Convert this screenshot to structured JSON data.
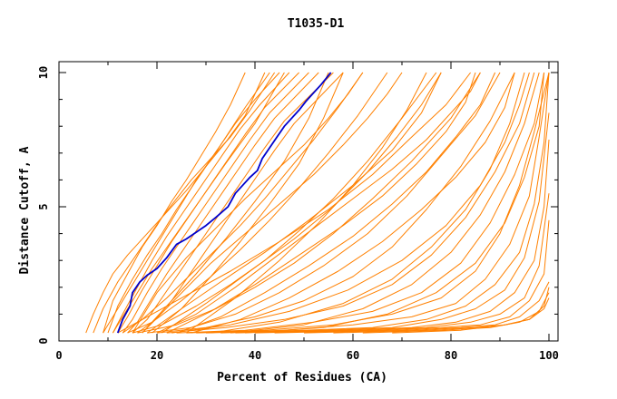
{
  "chart_data": {
    "type": "line",
    "title": "T1035-D1",
    "xlabel": "Percent of Residues (CA)",
    "ylabel": "Distance Cutoff, A",
    "xlim": [
      0,
      100
    ],
    "ylim": [
      0,
      10
    ],
    "xticks": [
      "0",
      "20",
      "40",
      "60",
      "80",
      "100"
    ],
    "yticks": [
      "0",
      "5",
      "10"
    ],
    "grid": false,
    "colors": {
      "others": "#ff8000",
      "highlight": "#0000cc",
      "axis": "#000000"
    },
    "highlight_series": {
      "x": [
        12,
        13,
        14.5,
        15,
        16.5,
        18,
        20,
        22,
        24,
        26,
        28,
        30,
        32,
        34.5,
        36,
        37.5,
        39,
        40.5,
        41.5,
        43,
        44.5,
        46,
        47.5,
        49,
        50.5,
        52,
        53.5,
        55.5
      ],
      "y": [
        0.3,
        0.8,
        1.3,
        1.8,
        2.2,
        2.45,
        2.7,
        3.1,
        3.6,
        3.8,
        4.05,
        4.3,
        4.6,
        5.0,
        5.5,
        5.8,
        6.1,
        6.35,
        6.8,
        7.2,
        7.6,
        8.0,
        8.3,
        8.6,
        8.95,
        9.25,
        9.55,
        10.0
      ]
    },
    "other_series": [
      {
        "x": [
          5.5,
          7,
          9,
          11,
          14,
          18,
          22,
          26,
          30,
          34,
          38,
          42
        ],
        "y": [
          0.3,
          1.0,
          1.8,
          2.5,
          3.2,
          4.0,
          4.8,
          5.6,
          6.5,
          7.4,
          8.4,
          10.0
        ]
      },
      {
        "x": [
          7,
          9,
          12,
          15,
          18,
          21,
          24,
          27,
          31,
          35,
          39,
          44
        ],
        "y": [
          0.3,
          1.2,
          2.2,
          3.0,
          3.8,
          4.6,
          5.3,
          6.0,
          6.8,
          7.6,
          8.6,
          10.0
        ]
      },
      {
        "x": [
          9,
          11,
          14,
          17,
          20,
          23,
          26,
          29,
          32,
          35,
          38
        ],
        "y": [
          0.3,
          1.5,
          2.5,
          3.5,
          4.3,
          5.2,
          6.0,
          6.9,
          7.8,
          8.8,
          10.0
        ]
      },
      {
        "x": [
          10,
          12,
          15,
          18,
          21,
          24,
          27,
          30,
          33,
          36,
          40,
          45
        ],
        "y": [
          0.3,
          1.3,
          2.3,
          3.2,
          4.0,
          4.9,
          5.7,
          6.5,
          7.3,
          8.1,
          9.0,
          10.0
        ]
      },
      {
        "x": [
          11,
          13,
          16,
          19,
          22,
          25,
          28,
          31,
          34,
          37,
          41,
          47
        ],
        "y": [
          0.3,
          1.0,
          2.0,
          3.0,
          3.9,
          4.7,
          5.5,
          6.3,
          7.1,
          7.9,
          8.8,
          10.0
        ]
      },
      {
        "x": [
          12,
          14,
          17,
          20,
          23,
          26,
          29,
          32,
          35,
          38,
          42,
          49
        ],
        "y": [
          0.3,
          0.9,
          1.9,
          2.8,
          3.7,
          4.5,
          5.3,
          6.1,
          6.9,
          7.7,
          8.7,
          10.0
        ]
      },
      {
        "x": [
          13,
          15,
          18,
          21,
          24,
          27,
          30,
          33,
          36,
          39,
          43,
          51
        ],
        "y": [
          0.3,
          0.8,
          1.8,
          2.7,
          3.5,
          4.3,
          5.1,
          5.9,
          6.7,
          7.5,
          8.5,
          10.0
        ]
      },
      {
        "x": [
          14,
          16,
          19,
          22,
          25,
          28,
          31,
          34,
          37,
          40,
          44,
          53
        ],
        "y": [
          0.3,
          0.7,
          1.6,
          2.5,
          3.3,
          4.1,
          4.9,
          5.7,
          6.5,
          7.3,
          8.3,
          10.0
        ]
      },
      {
        "x": [
          15,
          18,
          21,
          24,
          27,
          30,
          33,
          36,
          39,
          42,
          46,
          56
        ],
        "y": [
          0.3,
          0.8,
          1.6,
          2.4,
          3.2,
          4.0,
          4.8,
          5.6,
          6.4,
          7.2,
          8.2,
          10.0
        ]
      },
      {
        "x": [
          16,
          19,
          23,
          26,
          29,
          32,
          35,
          38,
          41,
          44,
          48,
          58
        ],
        "y": [
          0.3,
          0.7,
          1.5,
          2.3,
          3.1,
          3.9,
          4.7,
          5.5,
          6.3,
          7.1,
          8.1,
          10.0
        ]
      },
      {
        "x": [
          13,
          17,
          22,
          27,
          32,
          37,
          42,
          47,
          52,
          57,
          62
        ],
        "y": [
          0.3,
          0.8,
          1.6,
          2.5,
          3.4,
          4.3,
          5.3,
          6.4,
          7.5,
          8.7,
          10.0
        ]
      },
      {
        "x": [
          14,
          19,
          25,
          31,
          37,
          43,
          49,
          55,
          61,
          67
        ],
        "y": [
          0.3,
          0.7,
          1.5,
          2.4,
          3.4,
          4.5,
          5.7,
          7.0,
          8.4,
          10.0
        ]
      },
      {
        "x": [
          15,
          21,
          28,
          35,
          42,
          49,
          56,
          63,
          70,
          77
        ],
        "y": [
          0.3,
          0.6,
          1.3,
          2.1,
          3.0,
          4.1,
          5.3,
          6.7,
          8.3,
          10.0
        ]
      },
      {
        "x": [
          16,
          24,
          32,
          40,
          48,
          56,
          64,
          72,
          80,
          86
        ],
        "y": [
          0.3,
          0.6,
          1.2,
          2.0,
          2.9,
          4.0,
          5.3,
          6.7,
          8.3,
          10.0
        ]
      },
      {
        "x": [
          18,
          27,
          36,
          45,
          54,
          63,
          71,
          78,
          85,
          90
        ],
        "y": [
          0.3,
          0.5,
          1.0,
          1.8,
          2.8,
          4.0,
          5.4,
          6.9,
          8.4,
          10.0
        ]
      },
      {
        "x": [
          20,
          30,
          40,
          50,
          60,
          68,
          75,
          82,
          88,
          93
        ],
        "y": [
          0.3,
          0.5,
          0.9,
          1.5,
          2.4,
          3.5,
          4.9,
          6.5,
          8.2,
          10.0
        ]
      },
      {
        "x": [
          22,
          34,
          46,
          58,
          68,
          76,
          83,
          89,
          94,
          97
        ],
        "y": [
          0.3,
          0.5,
          0.8,
          1.3,
          2.1,
          3.2,
          4.6,
          6.3,
          8.1,
          10.0
        ]
      },
      {
        "x": [
          24,
          38,
          52,
          64,
          74,
          82,
          88,
          93,
          97,
          99
        ],
        "y": [
          0.3,
          0.4,
          0.7,
          1.1,
          1.8,
          2.9,
          4.4,
          6.2,
          8.1,
          10.0
        ]
      },
      {
        "x": [
          26,
          42,
          56,
          68,
          78,
          85,
          90,
          94,
          97,
          100
        ],
        "y": [
          0.3,
          0.4,
          0.6,
          1.0,
          1.6,
          2.6,
          4.0,
          5.8,
          7.8,
          10.0
        ]
      },
      {
        "x": [
          28,
          46,
          60,
          72,
          81,
          87,
          92,
          96,
          98,
          100
        ],
        "y": [
          0.3,
          0.4,
          0.6,
          0.9,
          1.4,
          2.3,
          3.6,
          5.4,
          7.6,
          10.0
        ]
      },
      {
        "x": [
          30,
          50,
          64,
          75,
          83,
          89,
          94,
          97,
          99,
          100
        ],
        "y": [
          0.3,
          0.4,
          0.5,
          0.8,
          1.3,
          2.1,
          3.3,
          5.1,
          7.4,
          10.0
        ]
      },
      {
        "x": [
          33,
          54,
          68,
          78,
          85,
          91,
          95,
          98,
          100
        ],
        "y": [
          0.3,
          0.4,
          0.5,
          0.8,
          1.2,
          1.9,
          3.1,
          5.2,
          8.5
        ]
      },
      {
        "x": [
          36,
          58,
          72,
          81,
          88,
          93,
          97,
          99,
          100
        ],
        "y": [
          0.3,
          0.4,
          0.5,
          0.7,
          1.1,
          1.8,
          3.0,
          5.0,
          7.5
        ]
      },
      {
        "x": [
          40,
          62,
          75,
          84,
          90,
          95,
          98,
          100
        ],
        "y": [
          0.3,
          0.4,
          0.5,
          0.7,
          1.0,
          1.6,
          2.8,
          5.5
        ]
      },
      {
        "x": [
          44,
          66,
          78,
          86,
          92,
          96,
          99,
          100
        ],
        "y": [
          0.3,
          0.4,
          0.5,
          0.6,
          0.9,
          1.5,
          2.5,
          4.5
        ]
      },
      {
        "x": [
          50,
          70,
          82,
          89,
          94,
          98,
          100
        ],
        "y": [
          0.3,
          0.4,
          0.5,
          0.6,
          0.9,
          1.5,
          2.2
        ]
      },
      {
        "x": [
          56,
          74,
          85,
          91,
          96,
          99,
          100
        ],
        "y": [
          0.3,
          0.4,
          0.5,
          0.6,
          0.8,
          1.3,
          2.0
        ]
      },
      {
        "x": [
          62,
          78,
          88,
          94,
          98,
          100
        ],
        "y": [
          0.3,
          0.4,
          0.5,
          0.7,
          1.1,
          1.8
        ]
      },
      {
        "x": [
          68,
          82,
          91,
          96,
          99,
          100
        ],
        "y": [
          0.3,
          0.4,
          0.6,
          0.8,
          1.2,
          1.6
        ]
      },
      {
        "x": [
          20,
          28,
          36,
          44,
          52,
          60,
          68,
          75,
          80,
          84,
          86
        ],
        "y": [
          0.3,
          1.0,
          2.0,
          3.1,
          4.2,
          5.3,
          6.4,
          7.5,
          8.5,
          9.3,
          10.0
        ]
      },
      {
        "x": [
          22,
          31,
          40,
          49,
          58,
          66,
          73,
          79,
          83,
          85
        ],
        "y": [
          0.3,
          1.1,
          2.1,
          3.2,
          4.3,
          5.4,
          6.6,
          7.8,
          8.9,
          10.0
        ]
      },
      {
        "x": [
          18,
          25,
          33,
          42,
          51,
          60,
          68,
          74,
          78
        ],
        "y": [
          0.3,
          1.2,
          2.2,
          3.3,
          4.5,
          5.8,
          7.1,
          8.5,
          10.0
        ]
      },
      {
        "x": [
          24,
          33,
          42,
          51,
          60,
          68,
          75,
          81,
          86,
          89
        ],
        "y": [
          0.3,
          0.9,
          1.8,
          2.8,
          3.9,
          5.1,
          6.3,
          7.6,
          8.8,
          10.0
        ]
      },
      {
        "x": [
          27,
          37,
          47,
          57,
          66,
          74,
          81,
          87,
          91,
          93
        ],
        "y": [
          0.3,
          0.8,
          1.6,
          2.6,
          3.7,
          4.9,
          6.1,
          7.4,
          8.7,
          10.0
        ]
      },
      {
        "x": [
          26,
          36,
          45,
          53,
          60,
          66,
          71,
          75
        ],
        "y": [
          0.3,
          1.6,
          3.0,
          4.4,
          5.8,
          7.2,
          8.6,
          10.0
        ]
      },
      {
        "x": [
          21,
          30,
          39,
          48,
          56,
          63,
          69,
          74,
          78
        ],
        "y": [
          0.3,
          1.4,
          2.6,
          3.8,
          5.0,
          6.3,
          7.6,
          8.8,
          10.0
        ]
      },
      {
        "x": [
          17,
          24,
          31,
          38,
          45,
          52,
          58,
          63,
          67,
          70
        ],
        "y": [
          0.3,
          1.6,
          2.9,
          4.0,
          5.1,
          6.2,
          7.3,
          8.3,
          9.2,
          10.0
        ]
      },
      {
        "x": [
          15,
          20,
          26,
          32,
          38,
          44,
          50,
          55,
          59,
          62
        ],
        "y": [
          0.3,
          1.8,
          3.1,
          4.2,
          5.3,
          6.3,
          7.3,
          8.3,
          9.2,
          10.0
        ]
      },
      {
        "x": [
          11,
          15,
          19,
          24,
          29,
          34,
          40,
          46
        ],
        "y": [
          0.3,
          1.5,
          2.7,
          4.0,
          5.3,
          6.6,
          8.1,
          10.0
        ]
      },
      {
        "x": [
          9,
          12,
          16,
          20,
          24,
          28,
          33,
          38,
          43
        ],
        "y": [
          0.3,
          1.2,
          2.4,
          3.6,
          4.8,
          6.0,
          7.3,
          8.7,
          10.0
        ]
      },
      {
        "x": [
          31,
          45,
          58,
          68,
          76,
          83,
          88,
          92,
          95
        ],
        "y": [
          0.3,
          0.7,
          1.4,
          2.3,
          3.5,
          4.9,
          6.4,
          8.1,
          10.0
        ]
      },
      {
        "x": [
          35,
          50,
          62,
          72,
          80,
          86,
          91,
          95,
          98
        ],
        "y": [
          0.3,
          0.6,
          1.2,
          2.1,
          3.3,
          4.7,
          6.3,
          8.1,
          10.0
        ]
      },
      {
        "x": [
          38,
          54,
          67,
          77,
          85,
          91,
          95,
          98,
          99
        ],
        "y": [
          0.3,
          0.5,
          1.0,
          1.8,
          2.9,
          4.4,
          6.1,
          8.0,
          10.0
        ]
      },
      {
        "x": [
          17,
          22,
          28,
          34,
          40,
          46,
          51,
          55
        ],
        "y": [
          0.3,
          1.3,
          2.5,
          3.8,
          5.2,
          6.7,
          8.3,
          10.0
        ]
      },
      {
        "x": [
          19,
          25,
          31,
          37,
          43,
          49,
          54,
          58
        ],
        "y": [
          0.3,
          1.2,
          2.4,
          3.7,
          5.1,
          6.6,
          8.3,
          10.0
        ]
      },
      {
        "x": [
          12,
          18,
          26,
          35,
          45,
          55,
          64,
          72,
          79,
          84
        ],
        "y": [
          0.3,
          0.9,
          1.7,
          2.6,
          3.7,
          4.9,
          6.2,
          7.6,
          8.8,
          10.0
        ]
      },
      {
        "x": [
          23,
          35,
          47,
          59,
          70,
          79,
          86,
          91,
          94,
          96
        ],
        "y": [
          0.3,
          0.6,
          1.1,
          1.9,
          3.0,
          4.3,
          5.8,
          7.4,
          8.8,
          10.0
        ]
      }
    ]
  }
}
